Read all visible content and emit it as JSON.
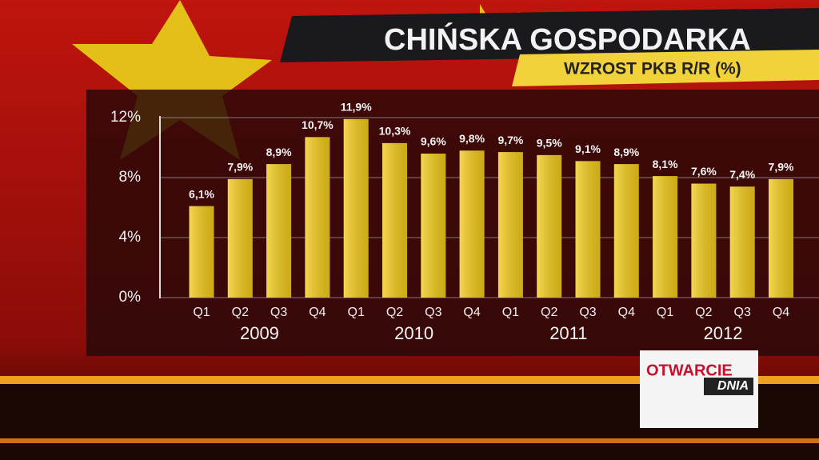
{
  "chart_data": {
    "type": "bar",
    "title": "CHIŃSKA GOSPODARKA",
    "subtitle": "WZROST PKB R/R (%)",
    "categories": [
      "Q1",
      "Q2",
      "Q3",
      "Q4",
      "Q1",
      "Q2",
      "Q3",
      "Q4",
      "Q1",
      "Q2",
      "Q3",
      "Q4",
      "Q1",
      "Q2",
      "Q3",
      "Q4"
    ],
    "groups": [
      "2009",
      "2010",
      "2011",
      "2012"
    ],
    "values": [
      6.1,
      7.9,
      8.9,
      10.7,
      11.9,
      10.3,
      9.6,
      9.8,
      9.7,
      9.5,
      9.1,
      8.9,
      8.1,
      7.6,
      7.4,
      7.9
    ],
    "value_labels": [
      "6,1%",
      "7,9%",
      "8,9%",
      "10,7%",
      "11,9%",
      "10,3%",
      "9,6%",
      "9,8%",
      "9,7%",
      "9,5%",
      "9,1%",
      "8,9%",
      "8,1%",
      "7,6%",
      "7,4%",
      "7,9%"
    ],
    "color": "#f1c918",
    "ylim": [
      0,
      12
    ],
    "yticks": [
      {
        "value": 0,
        "label": "0%"
      },
      {
        "value": 4,
        "label": "4%"
      },
      {
        "value": 8,
        "label": "8%"
      },
      {
        "value": 12,
        "label": "12%"
      }
    ],
    "grid": true
  },
  "logo": {
    "top": "OTWARCIE",
    "bottom": "DNIA"
  }
}
